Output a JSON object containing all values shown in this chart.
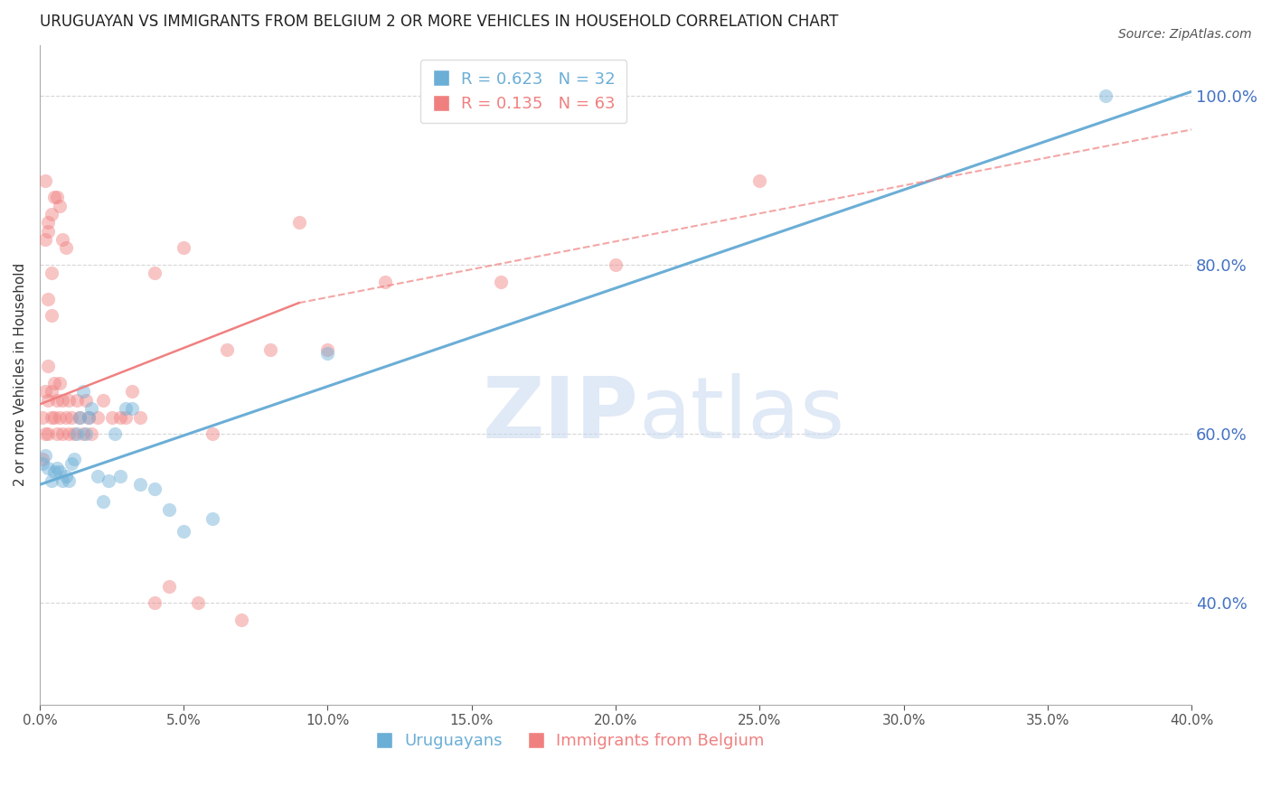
{
  "title": "URUGUAYAN VS IMMIGRANTS FROM BELGIUM 2 OR MORE VEHICLES IN HOUSEHOLD CORRELATION CHART",
  "source": "Source: ZipAtlas.com",
  "ylabel": "2 or more Vehicles in Household",
  "xlabel": "",
  "legend_entries": [
    {
      "label": "R = 0.623   N = 32",
      "color": "#6baed6"
    },
    {
      "label": "R = 0.135   N = 63",
      "color": "#f08080"
    }
  ],
  "legend_labels_bottom": [
    "Uruguayans",
    "Immigrants from Belgium"
  ],
  "xlim": [
    0.0,
    0.4
  ],
  "ylim": [
    0.28,
    1.06
  ],
  "yticks": [
    0.4,
    0.6,
    0.8,
    1.0
  ],
  "xticks": [
    0.0,
    0.05,
    0.1,
    0.15,
    0.2,
    0.25,
    0.3,
    0.35,
    0.4
  ],
  "blue_color": "#6baed6",
  "pink_color": "#f08080",
  "blue_scatter": {
    "x": [
      0.001,
      0.002,
      0.003,
      0.004,
      0.005,
      0.006,
      0.007,
      0.008,
      0.009,
      0.01,
      0.011,
      0.012,
      0.013,
      0.014,
      0.015,
      0.016,
      0.017,
      0.018,
      0.02,
      0.022,
      0.024,
      0.026,
      0.028,
      0.03,
      0.032,
      0.035,
      0.04,
      0.045,
      0.05,
      0.06,
      0.1,
      0.37
    ],
    "y": [
      0.565,
      0.575,
      0.56,
      0.545,
      0.555,
      0.56,
      0.555,
      0.545,
      0.55,
      0.545,
      0.565,
      0.57,
      0.6,
      0.62,
      0.65,
      0.6,
      0.62,
      0.63,
      0.55,
      0.52,
      0.545,
      0.6,
      0.55,
      0.63,
      0.63,
      0.54,
      0.535,
      0.51,
      0.485,
      0.5,
      0.695,
      1.0
    ]
  },
  "pink_scatter": {
    "x": [
      0.001,
      0.001,
      0.002,
      0.002,
      0.003,
      0.003,
      0.003,
      0.004,
      0.004,
      0.005,
      0.005,
      0.006,
      0.006,
      0.007,
      0.007,
      0.008,
      0.008,
      0.009,
      0.01,
      0.01,
      0.011,
      0.012,
      0.013,
      0.014,
      0.015,
      0.016,
      0.017,
      0.018,
      0.02,
      0.022,
      0.025,
      0.028,
      0.03,
      0.032,
      0.035,
      0.04,
      0.045,
      0.05,
      0.055,
      0.06,
      0.065,
      0.07,
      0.08,
      0.09,
      0.1,
      0.12,
      0.16,
      0.2,
      0.25,
      0.04,
      0.003,
      0.004,
      0.005,
      0.002,
      0.006,
      0.007,
      0.008,
      0.009,
      0.002,
      0.003,
      0.004,
      0.003,
      0.004
    ],
    "y": [
      0.57,
      0.62,
      0.6,
      0.65,
      0.6,
      0.64,
      0.68,
      0.62,
      0.65,
      0.62,
      0.66,
      0.6,
      0.64,
      0.62,
      0.66,
      0.6,
      0.64,
      0.62,
      0.6,
      0.64,
      0.62,
      0.6,
      0.64,
      0.62,
      0.6,
      0.64,
      0.62,
      0.6,
      0.62,
      0.64,
      0.62,
      0.62,
      0.62,
      0.65,
      0.62,
      0.4,
      0.42,
      0.82,
      0.4,
      0.6,
      0.7,
      0.38,
      0.7,
      0.85,
      0.7,
      0.78,
      0.78,
      0.8,
      0.9,
      0.79,
      0.84,
      0.86,
      0.88,
      0.9,
      0.88,
      0.87,
      0.83,
      0.82,
      0.83,
      0.85,
      0.79,
      0.76,
      0.74
    ]
  },
  "blue_line": {
    "x0": 0.0,
    "x1": 0.4,
    "y0": 0.54,
    "y1": 1.005
  },
  "pink_line_solid": {
    "x0": 0.0,
    "x1": 0.09,
    "y0": 0.635,
    "y1": 0.755
  },
  "pink_line_dashed": {
    "x0": 0.09,
    "x1": 0.4,
    "y0": 0.755,
    "y1": 0.96
  },
  "watermark_zip": "ZIP",
  "watermark_atlas": "atlas",
  "title_fontsize": 12,
  "axis_label_fontsize": 11,
  "tick_fontsize": 11,
  "source_fontsize": 10,
  "scatter_size": 120,
  "scatter_alpha": 0.45,
  "scatter_linewidth": 0.0,
  "grid_color": "#cccccc",
  "grid_linestyle": "--",
  "grid_alpha": 0.8,
  "background_color": "#ffffff",
  "right_axis_color": "#4472c4"
}
